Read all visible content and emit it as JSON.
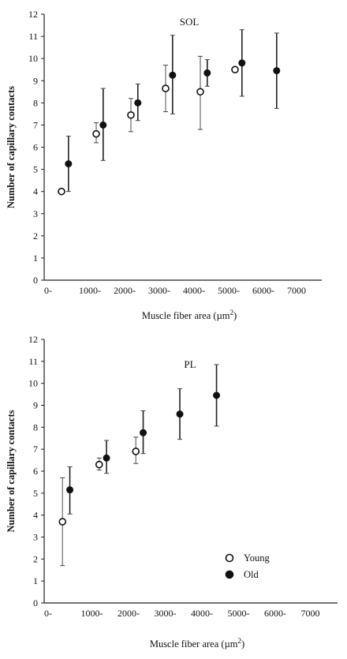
{
  "chart_data": [
    {
      "type": "scatter",
      "title": "SOL",
      "xlabel": "Muscle fiber area (µm",
      "xlabel_sup": "2",
      "xlabel_close": ")",
      "ylabel": "Number of capillary contacts",
      "xlim": [
        0,
        8000
      ],
      "ylim": [
        0,
        12
      ],
      "xticks": [
        "0-",
        "1000-",
        "2000-",
        "3000-",
        "4000-",
        "5000-",
        "6000-",
        "7000"
      ],
      "yticks": [
        "0",
        "1",
        "2",
        "3",
        "4",
        "5",
        "6",
        "7",
        "8",
        "9",
        "10",
        "11",
        "12"
      ],
      "error_bars": true,
      "series": [
        {
          "name": "Young",
          "marker": "open-circle",
          "points": [
            {
              "x": 500,
              "y": 4.0,
              "lo": 4.0,
              "hi": 4.0
            },
            {
              "x": 1500,
              "y": 6.6,
              "lo": 6.2,
              "hi": 7.1
            },
            {
              "x": 2500,
              "y": 7.45,
              "lo": 6.7,
              "hi": 8.2
            },
            {
              "x": 3500,
              "y": 8.65,
              "lo": 7.6,
              "hi": 9.7
            },
            {
              "x": 4500,
              "y": 8.5,
              "lo": 6.8,
              "hi": 10.1
            },
            {
              "x": 5500,
              "y": 9.5,
              "lo": 9.5,
              "hi": 9.5
            }
          ]
        },
        {
          "name": "Old",
          "marker": "filled-circle",
          "points": [
            {
              "x": 700,
              "y": 5.25,
              "lo": 4.0,
              "hi": 6.5
            },
            {
              "x": 1700,
              "y": 7.0,
              "lo": 5.4,
              "hi": 8.65
            },
            {
              "x": 2700,
              "y": 8.0,
              "lo": 7.2,
              "hi": 8.85
            },
            {
              "x": 3700,
              "y": 9.25,
              "lo": 7.5,
              "hi": 11.05
            },
            {
              "x": 4700,
              "y": 9.35,
              "lo": 8.75,
              "hi": 9.95
            },
            {
              "x": 5700,
              "y": 9.8,
              "lo": 8.3,
              "hi": 11.3
            },
            {
              "x": 6700,
              "y": 9.45,
              "lo": 7.75,
              "hi": 11.15
            }
          ]
        }
      ]
    },
    {
      "type": "scatter",
      "title": "PL",
      "xlabel": "Muscle fiber area (µm",
      "xlabel_sup": "2",
      "xlabel_close": ")",
      "ylabel": "Number of capillary contacts",
      "xlim": [
        0,
        8000
      ],
      "ylim": [
        0,
        12
      ],
      "xticks": [
        "0-",
        "1000-",
        "2000-",
        "3000-",
        "4000-",
        "5000-",
        "6000-",
        "7000"
      ],
      "yticks": [
        "0",
        "1",
        "2",
        "3",
        "4",
        "5",
        "6",
        "7",
        "8",
        "9",
        "10",
        "11",
        "12"
      ],
      "error_bars": true,
      "legend": {
        "position": "bottom-right",
        "entries": [
          "Young",
          "Old"
        ]
      },
      "series": [
        {
          "name": "Young",
          "marker": "open-circle",
          "points": [
            {
              "x": 500,
              "y": 3.7,
              "lo": 1.7,
              "hi": 5.7
            },
            {
              "x": 1500,
              "y": 6.3,
              "lo": 6.05,
              "hi": 6.6
            },
            {
              "x": 2500,
              "y": 6.9,
              "lo": 6.35,
              "hi": 7.55
            }
          ]
        },
        {
          "name": "Old",
          "marker": "filled-circle",
          "points": [
            {
              "x": 700,
              "y": 5.15,
              "lo": 4.05,
              "hi": 6.2
            },
            {
              "x": 1700,
              "y": 6.6,
              "lo": 5.9,
              "hi": 7.4
            },
            {
              "x": 2700,
              "y": 7.75,
              "lo": 6.8,
              "hi": 8.75
            },
            {
              "x": 3700,
              "y": 8.6,
              "lo": 7.45,
              "hi": 9.75
            },
            {
              "x": 4700,
              "y": 9.45,
              "lo": 8.05,
              "hi": 10.85
            }
          ]
        }
      ]
    }
  ]
}
